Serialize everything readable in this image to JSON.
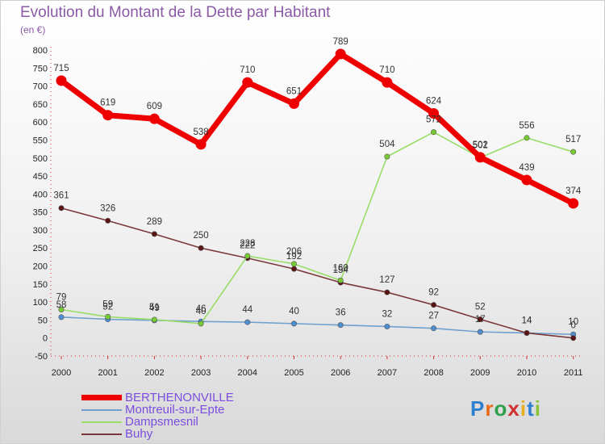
{
  "chart_data": {
    "type": "line",
    "title": "Evolution du Montant de la Dette par Habitant",
    "subtitle": "(en €)",
    "xlabel": "",
    "ylabel": "",
    "ylim": [
      -50,
      800
    ],
    "yticks": [
      -50,
      0,
      50,
      100,
      150,
      200,
      250,
      300,
      350,
      400,
      450,
      500,
      550,
      600,
      650,
      700,
      750,
      800
    ],
    "categories": [
      "2000",
      "2001",
      "2002",
      "2003",
      "2004",
      "2005",
      "2006",
      "2007",
      "2008",
      "2009",
      "2010",
      "2011"
    ],
    "grid": false,
    "legend_position": "bottom-left",
    "series": [
      {
        "name": "BERTHENONVILLE",
        "color": "#ee0000",
        "values": [
          715,
          619,
          609,
          538,
          710,
          651,
          789,
          710,
          624,
          502,
          439,
          374
        ]
      },
      {
        "name": "Montreuil-sur-Epte",
        "color": "#6fa0d0",
        "values": [
          58,
          52,
          49,
          46,
          44,
          40,
          36,
          32,
          27,
          17,
          14,
          10
        ]
      },
      {
        "name": "Dampsmesnil",
        "color": "#99dd66",
        "values": [
          79,
          59,
          51,
          40,
          228,
          206,
          160,
          504,
          572,
          501,
          556,
          517
        ]
      },
      {
        "name": "Buhy",
        "color": "#7a3838",
        "values": [
          361,
          326,
          289,
          250,
          222,
          192,
          154,
          127,
          92,
          52,
          14,
          0
        ]
      }
    ]
  },
  "logo": {
    "text": "Proxiti"
  }
}
